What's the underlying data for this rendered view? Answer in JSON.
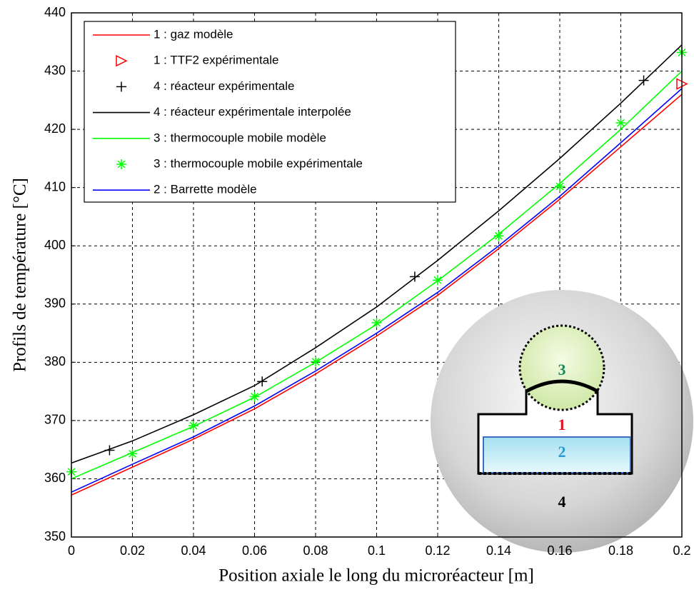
{
  "chart_data": {
    "type": "line",
    "xlabel": "Position axiale le long du microréacteur [m]",
    "ylabel": "Profils de température [°C]",
    "xlim": [
      0,
      0.2
    ],
    "ylim": [
      350,
      440
    ],
    "xticks": [
      0,
      0.02,
      0.04,
      0.06,
      0.08,
      0.1,
      0.12,
      0.14,
      0.16,
      0.18,
      0.2
    ],
    "yticks": [
      350,
      360,
      370,
      380,
      390,
      400,
      410,
      420,
      430,
      440
    ],
    "grid": true,
    "legend": "upper left",
    "series": [
      {
        "name": "1 : gaz modèle",
        "color": "#ff0000",
        "style": "line",
        "x": [
          0,
          0.02,
          0.04,
          0.06,
          0.08,
          0.1,
          0.12,
          0.14,
          0.16,
          0.18,
          0.2
        ],
        "values": [
          357.2,
          362,
          366.8,
          372,
          378,
          384.5,
          391.5,
          399.5,
          408,
          417,
          426
        ]
      },
      {
        "name": "1 : TTF2 expérimentale",
        "color": "#ff0000",
        "style": "marker",
        "marker": "triangle",
        "x": [
          0.2
        ],
        "values": [
          427.8
        ]
      },
      {
        "name": "4 : réacteur expérimentale",
        "color": "#000000",
        "style": "marker",
        "marker": "plus",
        "x": [
          0.0125,
          0.0625,
          0.1125,
          0.1875
        ],
        "values": [
          364.9,
          376.7,
          394.7,
          428.4
        ]
      },
      {
        "name": "4 : réacteur expérimentale interpolée",
        "color": "#000000",
        "style": "line",
        "x": [
          0,
          0.02,
          0.04,
          0.06,
          0.08,
          0.1,
          0.12,
          0.14,
          0.16,
          0.18,
          0.2
        ],
        "values": [
          362.7,
          366.5,
          371,
          376,
          382.5,
          389.5,
          397.5,
          406,
          415,
          424.5,
          434.5
        ]
      },
      {
        "name": "3 : thermocouple mobile modèle",
        "color": "#00ff00",
        "style": "line",
        "x": [
          0,
          0.02,
          0.04,
          0.06,
          0.08,
          0.1,
          0.12,
          0.14,
          0.16,
          0.18,
          0.2
        ],
        "values": [
          360,
          364.5,
          369,
          374,
          380,
          386.5,
          394,
          402,
          410.7,
          420,
          430
        ]
      },
      {
        "name": "3 : thermocouple mobile expérimentale",
        "color": "#00ff00",
        "style": "marker",
        "marker": "star",
        "x": [
          0,
          0.02,
          0.04,
          0.06,
          0.08,
          0.1,
          0.12,
          0.14,
          0.16,
          0.18,
          0.2
        ],
        "values": [
          361.2,
          364.3,
          369.1,
          374.1,
          380.1,
          386.8,
          394.1,
          401.7,
          410.2,
          421.1,
          433.2
        ]
      },
      {
        "name": "2 : Barrette modèle",
        "color": "#0000ff",
        "style": "line",
        "x": [
          0,
          0.02,
          0.04,
          0.06,
          0.08,
          0.1,
          0.12,
          0.14,
          0.16,
          0.18,
          0.2
        ],
        "values": [
          357.7,
          362.5,
          367.2,
          372.5,
          378.5,
          385,
          392,
          400,
          408.5,
          417.7,
          427
        ]
      }
    ],
    "annotations": [
      {
        "text": "3",
        "color": "#1a8a5a"
      },
      {
        "text": "1",
        "color": "#e01020"
      },
      {
        "text": "2",
        "color": "#2a9ad0"
      },
      {
        "text": "4",
        "color": "#000000"
      }
    ]
  }
}
